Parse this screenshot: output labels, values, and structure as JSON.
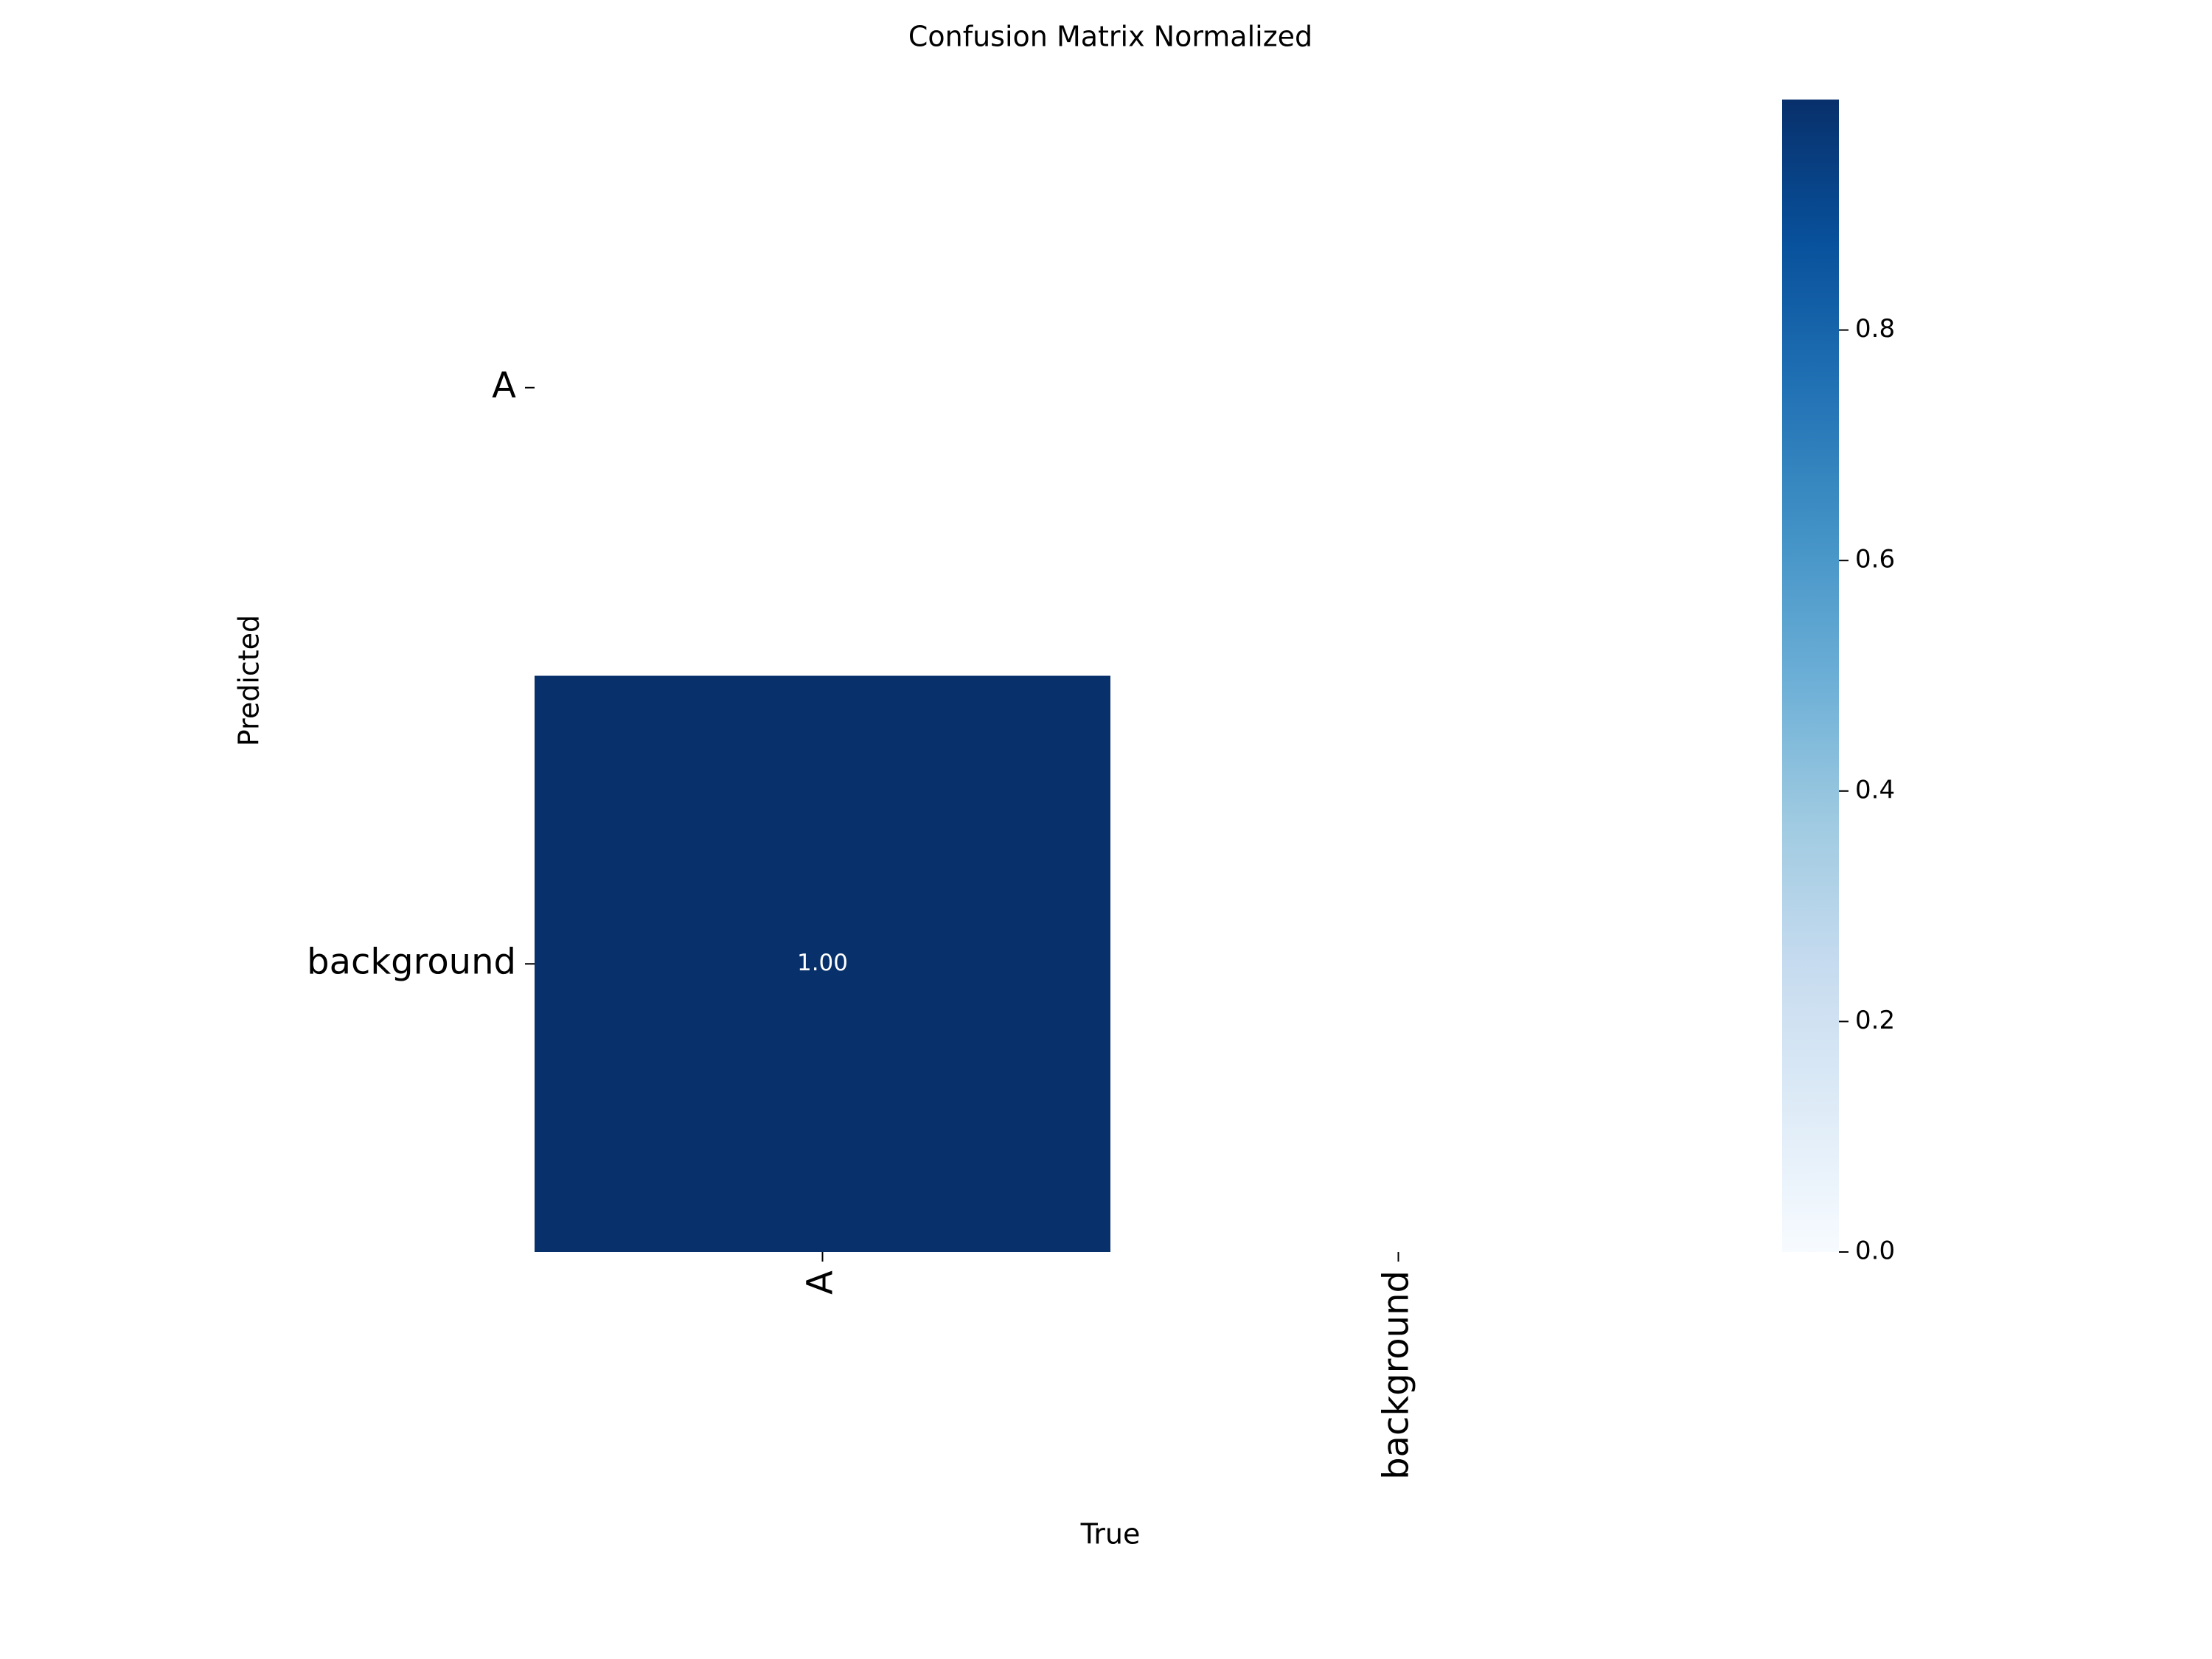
{
  "chart_data": {
    "type": "heatmap",
    "title": "Confusion Matrix Normalized",
    "x_label": "True",
    "y_label": "Predicted",
    "x_categories": [
      "A",
      "background"
    ],
    "y_categories": [
      "A",
      "background"
    ],
    "values": [
      [
        null,
        null
      ],
      [
        1,
        null
      ]
    ],
    "value_labels": [
      [
        null,
        null
      ],
      [
        "1.00",
        null
      ]
    ],
    "colormap": "Blues",
    "clim": [
      0,
      1
    ],
    "cticks": [
      {
        "value": 0,
        "label": "0.0"
      },
      {
        "value": 0.2,
        "label": "0.2"
      },
      {
        "value": 0.4,
        "label": "0.4"
      },
      {
        "value": 0.6,
        "label": "0.6"
      },
      {
        "value": 0.8,
        "label": "0.8"
      }
    ]
  }
}
